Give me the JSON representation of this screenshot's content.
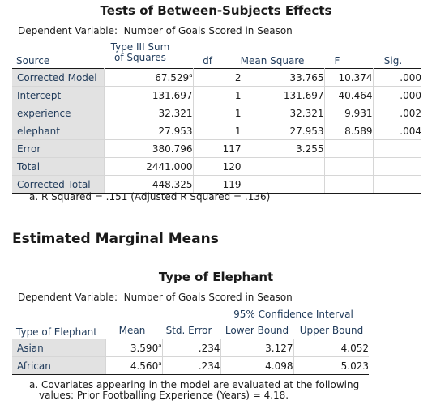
{
  "anova": {
    "title": "Tests of Between-Subjects Effects",
    "dv_label": "Dependent Variable:",
    "dv_value": "Number of Goals Scored in Season",
    "headers": {
      "source": "Source",
      "ss_line1": "Type III Sum",
      "ss_line2": "of Squares",
      "df": "df",
      "ms": "Mean Square",
      "f": "F",
      "sig": "Sig."
    },
    "rows": [
      {
        "source": "Corrected Model",
        "ss": "67.529",
        "ss_sup": "a",
        "df": "2",
        "ms": "33.765",
        "f": "10.374",
        "sig": ".000"
      },
      {
        "source": "Intercept",
        "ss": "131.697",
        "ss_sup": "",
        "df": "1",
        "ms": "131.697",
        "f": "40.464",
        "sig": ".000"
      },
      {
        "source": "experience",
        "ss": "32.321",
        "ss_sup": "",
        "df": "1",
        "ms": "32.321",
        "f": "9.931",
        "sig": ".002"
      },
      {
        "source": "elephant",
        "ss": "27.953",
        "ss_sup": "",
        "df": "1",
        "ms": "27.953",
        "f": "8.589",
        "sig": ".004"
      },
      {
        "source": "Error",
        "ss": "380.796",
        "ss_sup": "",
        "df": "117",
        "ms": "3.255",
        "f": "",
        "sig": ""
      },
      {
        "source": "Total",
        "ss": "2441.000",
        "ss_sup": "",
        "df": "120",
        "ms": "",
        "f": "",
        "sig": ""
      },
      {
        "source": "Corrected Total",
        "ss": "448.325",
        "ss_sup": "",
        "df": "119",
        "ms": "",
        "f": "",
        "sig": ""
      }
    ],
    "footnote": "a. R Squared = .151 (Adjusted R Squared = .136)"
  },
  "emm": {
    "heading": "Estimated Marginal Means",
    "title": "Type of Elephant",
    "dv_label": "Dependent Variable:",
    "dv_value": "Number of Goals Scored in Season",
    "headers": {
      "group": "Type of Elephant",
      "mean": "Mean",
      "se": "Std. Error",
      "ci": "95% Confidence Interval",
      "lower": "Lower Bound",
      "upper": "Upper Bound"
    },
    "rows": [
      {
        "group": "Asian",
        "mean": "3.590",
        "sup": "a",
        "se": ".234",
        "lower": "3.127",
        "upper": "4.052"
      },
      {
        "group": "African",
        "mean": "4.560",
        "sup": "a",
        "se": ".234",
        "lower": "4.098",
        "upper": "5.023"
      }
    ],
    "footnote_line1": "a. Covariates appearing in the model are evaluated at the following",
    "footnote_line2": "values: Prior Footballing Experience (Years) = 4.18."
  }
}
